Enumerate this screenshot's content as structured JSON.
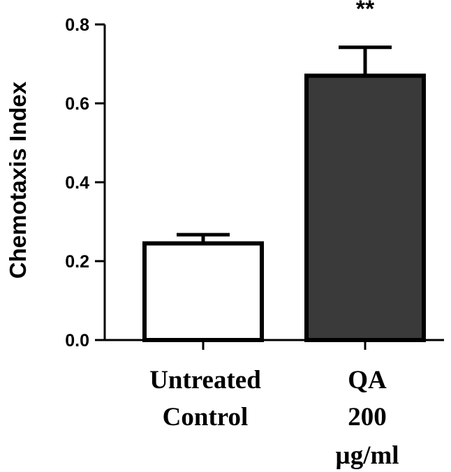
{
  "chart_data": {
    "type": "bar",
    "ylabel": "Chemotaxis Index",
    "xlabel": "",
    "ylim": [
      0,
      0.8
    ],
    "yticks": [
      "0.0",
      "0.2",
      "0.4",
      "0.6",
      "0.8"
    ],
    "categories": [
      [
        "Untreated",
        "Control"
      ],
      [
        "QA",
        "200",
        "µg/ml"
      ]
    ],
    "values": [
      0.245,
      0.67
    ],
    "error_upper": [
      0.022,
      0.072
    ],
    "significance": [
      "",
      "**"
    ],
    "grid": false,
    "legend": "none",
    "colors": {
      "bar_fills": [
        "#ffffff",
        "#3a3a3a"
      ],
      "stroke": "#000000"
    }
  }
}
